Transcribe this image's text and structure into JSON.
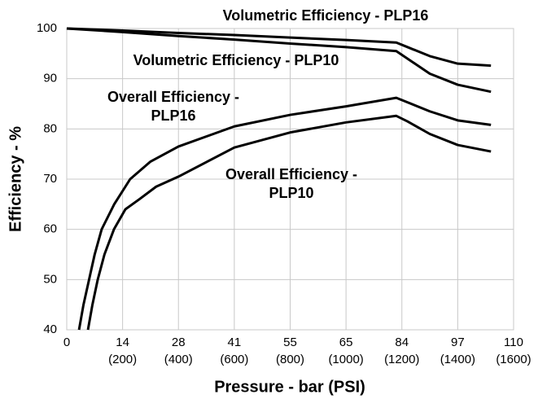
{
  "chart_data": {
    "type": "line",
    "xlabel": "Pressure - bar (PSI)",
    "ylabel": "Efficiency - %",
    "xlim": [
      0,
      1600
    ],
    "xticks": [
      0,
      {
        "value": 200,
        "label": "14 (200)"
      },
      {
        "value": 400,
        "label": "28 (400)"
      },
      {
        "value": 600,
        "label": "41 (600)"
      },
      {
        "value": 800,
        "label": "55 (800)"
      },
      {
        "value": 1000,
        "label": "65 (1000)"
      },
      {
        "value": 1200,
        "label": "84 (1200)"
      },
      {
        "value": 1400,
        "label": "97 (1400)"
      },
      {
        "value": 1600,
        "label": "110 (1600)"
      }
    ],
    "ylim": [
      40,
      100
    ],
    "yticks": [
      40,
      50,
      60,
      70,
      80,
      90,
      100
    ],
    "grid": true,
    "annotations": [
      {
        "lines": [
          "Volumetric Efficiency - PLP16"
        ]
      },
      {
        "lines": [
          "Volumetric Efficiency - PLP10"
        ]
      },
      {
        "lines": [
          "Overall Efficiency -",
          "PLP16"
        ]
      },
      {
        "lines": [
          "Overall Efficiency -",
          "PLP10"
        ]
      }
    ],
    "series": [
      {
        "color": "#000000",
        "x": [
          0,
          200,
          400,
          600,
          800,
          1000,
          1180,
          1220,
          1300,
          1400,
          1519
        ],
        "values": [
          100,
          99.6,
          99.1,
          98.7,
          98.2,
          97.7,
          97.2,
          96.3,
          94.5,
          93.0,
          92.6
        ]
      },
      {
        "color": "#000000",
        "x": [
          0,
          200,
          400,
          600,
          800,
          1000,
          1180,
          1220,
          1300,
          1400,
          1519
        ],
        "values": [
          100,
          99.3,
          98.5,
          97.8,
          97.0,
          96.3,
          95.5,
          94.0,
          91.0,
          88.8,
          87.4
        ]
      },
      {
        "color": "#000000",
        "x": [
          44,
          60,
          80,
          100,
          125,
          170,
          227,
          300,
          400,
          600,
          800,
          1000,
          1180,
          1220,
          1300,
          1400,
          1519
        ],
        "values": [
          40,
          45,
          50,
          55,
          60,
          65,
          70,
          73.5,
          76.5,
          80.5,
          82.8,
          84.5,
          86.2,
          85.3,
          83.5,
          81.7,
          80.8
        ]
      },
      {
        "color": "#000000",
        "x": [
          76,
          92,
          111,
          135,
          169,
          210,
          260,
          320,
          400,
          600,
          800,
          1000,
          1180,
          1220,
          1300,
          1400,
          1519
        ],
        "values": [
          40,
          45,
          50,
          55,
          60,
          64,
          66,
          68.5,
          70.5,
          76.3,
          79.3,
          81.3,
          82.6,
          81.5,
          79.0,
          76.8,
          75.5
        ]
      }
    ]
  }
}
